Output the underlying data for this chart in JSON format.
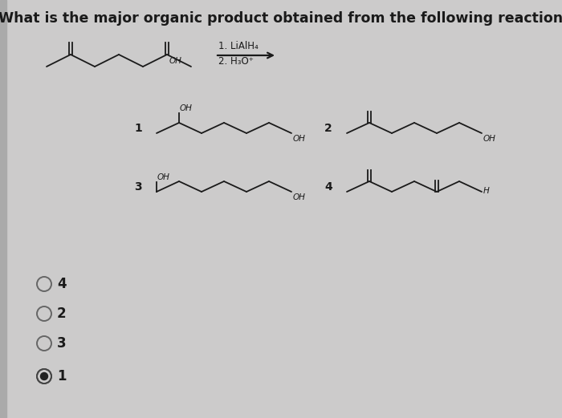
{
  "title": "What is the major organic product obtained from the following reaction?",
  "background_color": "#cccbcb",
  "line_color": "#1a1a1a",
  "reagent1": "1. LiAlH₄",
  "reagent2": "2. H₃O⁺",
  "option_labels": [
    "4",
    "2",
    "3",
    "1"
  ],
  "selected": "1",
  "SL": 28,
  "RISE": 13
}
